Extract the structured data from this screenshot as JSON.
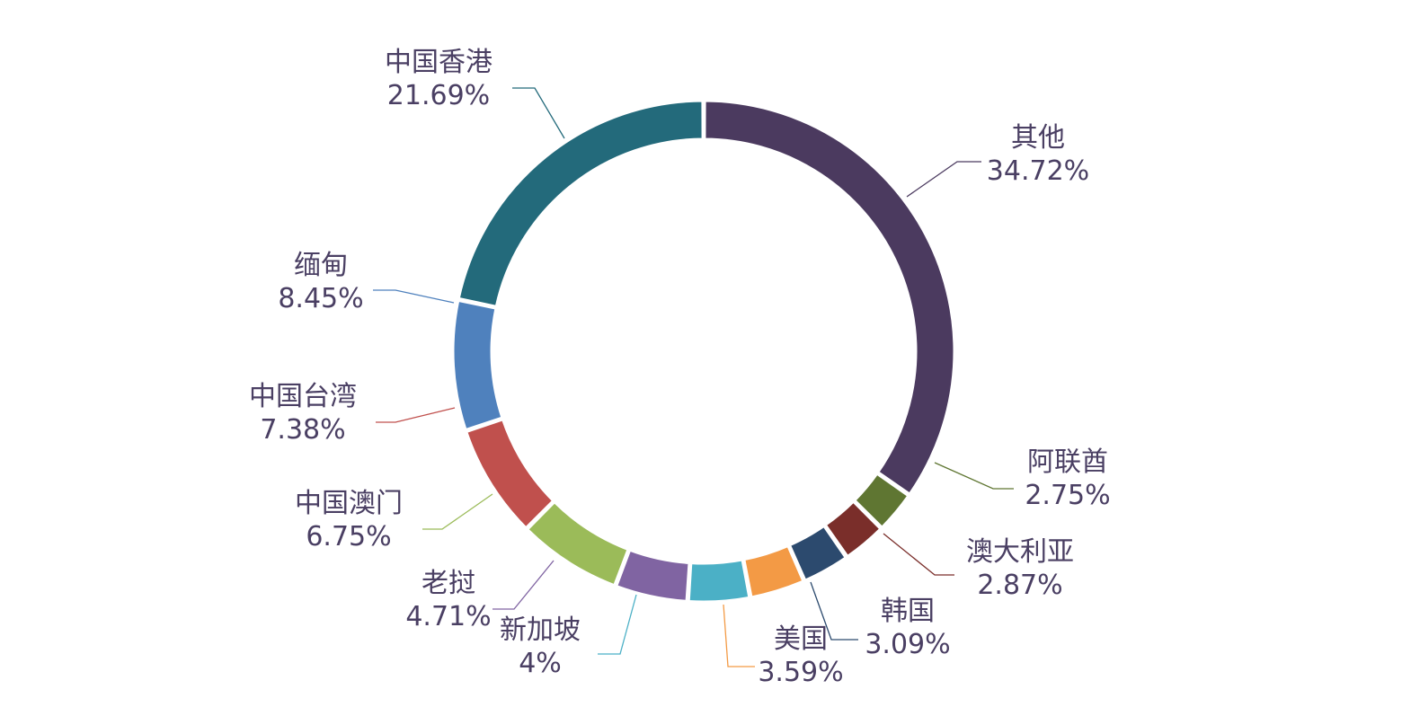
{
  "chart_data": {
    "type": "pie",
    "donut": true,
    "slices": [
      {
        "name": "其他",
        "value": 34.72,
        "label": "34.72%",
        "color": "#4b3a5f"
      },
      {
        "name": "阿联酋",
        "value": 2.75,
        "label": "2.75%",
        "color": "#5f7632"
      },
      {
        "name": "澳大利亚",
        "value": 2.87,
        "label": "2.87%",
        "color": "#7a2e2a"
      },
      {
        "name": "韩国",
        "value": 3.09,
        "label": "3.09%",
        "color": "#2c4a6e"
      },
      {
        "name": "美国",
        "value": 3.59,
        "label": "3.59%",
        "color": "#f39a45"
      },
      {
        "name": "新加坡",
        "value": 4,
        "label": "4%",
        "color": "#4bb0c6"
      },
      {
        "name": "老挝",
        "value": 4.71,
        "label": "4.71%",
        "color": "#8064a2"
      },
      {
        "name": "中国澳门",
        "value": 6.75,
        "label": "6.75%",
        "color": "#9bbb59"
      },
      {
        "name": "中国台湾",
        "value": 7.38,
        "label": "7.38%",
        "color": "#c0504d"
      },
      {
        "name": "缅甸",
        "value": 8.45,
        "label": "8.45%",
        "color": "#4f81bd"
      },
      {
        "name": "中国香港",
        "value": 21.69,
        "label": "21.69%",
        "color": "#236a7b"
      }
    ],
    "text_color": "#4a3f63"
  }
}
